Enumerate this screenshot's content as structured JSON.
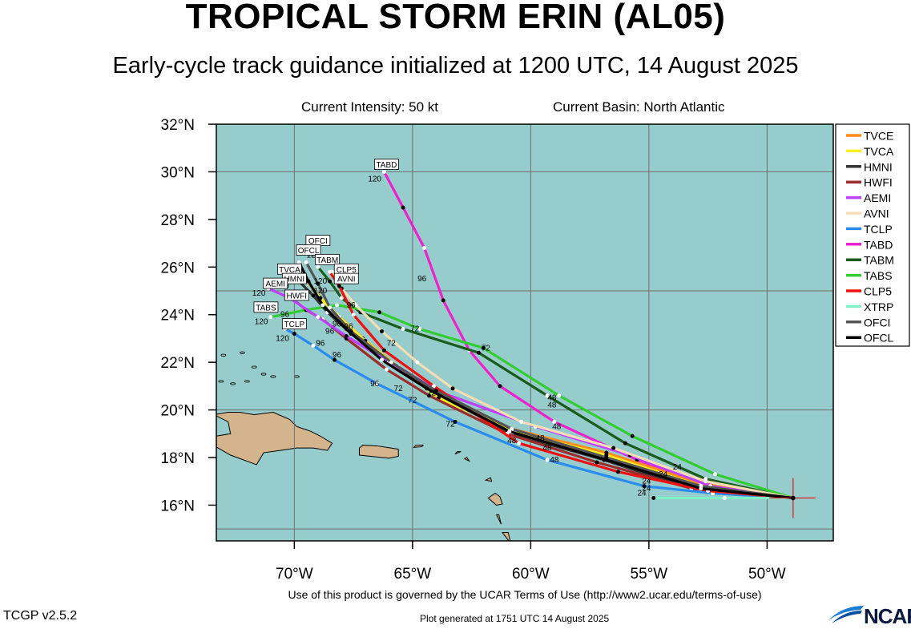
{
  "header": {
    "title": "TROPICAL STORM ERIN (AL05)",
    "subtitle": "Early-cycle track guidance initialized at 1200 UTC, 14 August 2025",
    "current_intensity": "Current Intensity: 50 kt",
    "current_basin": "Current Basin: North Atlantic"
  },
  "footer": {
    "terms": "Use of this product is governed by the UCAR Terms of Use (http://www2.ucar.edu/terms-of-use)",
    "version": "TCGP v2.5.2",
    "generated": "Plot generated at 1751 UTC   14 August 2025",
    "logo_text": "NCAR"
  },
  "map": {
    "lon_range": [
      -73.3,
      -47.2
    ],
    "lat_range": [
      14.5,
      32.0
    ],
    "lon_ticks": [
      {
        "v": -70,
        "label": "70°W"
      },
      {
        "v": -65,
        "label": "65°W"
      },
      {
        "v": -60,
        "label": "60°W"
      },
      {
        "v": -55,
        "label": "55°W"
      },
      {
        "v": -50,
        "label": "50°W"
      }
    ],
    "lat_ticks": [
      {
        "v": 32,
        "label": "32°N"
      },
      {
        "v": 30,
        "label": "30°N"
      },
      {
        "v": 28,
        "label": "28°N"
      },
      {
        "v": 26,
        "label": "26°N"
      },
      {
        "v": 24,
        "label": "24°N"
      },
      {
        "v": 22,
        "label": "22°N"
      },
      {
        "v": 20,
        "label": "20°N"
      },
      {
        "v": 18,
        "label": "18°N"
      },
      {
        "v": 16,
        "label": "16°N"
      }
    ],
    "grid_lons": [
      -70,
      -65,
      -60,
      -55,
      -50
    ],
    "grid_lats": [
      30,
      25,
      20,
      15
    ],
    "ocean_color": "#96cccb",
    "land_color": "#d4b48c",
    "grid_color": "#6e6e6e",
    "initial_position": {
      "lon": -48.9,
      "lat": 16.3
    }
  },
  "legend": [
    {
      "name": "TVCE",
      "color": "#ff8c1a"
    },
    {
      "name": "TVCA",
      "color": "#ffee22"
    },
    {
      "name": "HMNI",
      "color": "#333333"
    },
    {
      "name": "HWFI",
      "color": "#9b2d2d"
    },
    {
      "name": "AEMI",
      "color": "#c040ff"
    },
    {
      "name": "AVNI",
      "color": "#f5ddb5"
    },
    {
      "name": "TCLP",
      "color": "#2b8cf0"
    },
    {
      "name": "TABD",
      "color": "#ee22cc"
    },
    {
      "name": "TABM",
      "color": "#1a5a1a"
    },
    {
      "name": "TABS",
      "color": "#33cc33"
    },
    {
      "name": "CLP5",
      "color": "#ee1111"
    },
    {
      "name": "XTRP",
      "color": "#80f0c8"
    },
    {
      "name": "OFCI",
      "color": "#555555"
    },
    {
      "name": "OFCL",
      "color": "#000000"
    }
  ],
  "tracks": [
    {
      "name": "TABD",
      "label": "TABD",
      "end_hour": "120",
      "points": [
        [
          -48.9,
          16.3
        ],
        [
          -51.9,
          16.7
        ],
        [
          -55.5,
          17.9
        ],
        [
          -59.0,
          19.5
        ],
        [
          -61.3,
          21.0
        ],
        [
          -62.6,
          22.5
        ],
        [
          -63.7,
          24.6
        ],
        [
          -64.5,
          26.8
        ],
        [
          -65.4,
          28.5
        ],
        [
          -66.2,
          30.0
        ]
      ]
    },
    {
      "name": "TABM",
      "label": "TABM",
      "end_hour": "120",
      "points": [
        [
          -48.9,
          16.3
        ],
        [
          -52.6,
          17.1
        ],
        [
          -56.0,
          18.6
        ],
        [
          -59.3,
          20.6
        ],
        [
          -62.2,
          22.4
        ],
        [
          -65.4,
          23.4
        ],
        [
          -67.2,
          24.1
        ],
        [
          -68.0,
          24.7
        ],
        [
          -68.5,
          25.4
        ],
        [
          -69.0,
          26.0
        ]
      ]
    },
    {
      "name": "TABS",
      "label": "TABS",
      "end_hour": "120",
      "points": [
        [
          -48.9,
          16.3
        ],
        [
          -52.2,
          17.3
        ],
        [
          -55.7,
          18.9
        ],
        [
          -58.8,
          20.6
        ],
        [
          -62.0,
          22.6
        ],
        [
          -64.7,
          23.4
        ],
        [
          -66.4,
          24.1
        ],
        [
          -68.2,
          24.4
        ],
        [
          -69.5,
          24.2
        ],
        [
          -71.0,
          23.9
        ]
      ]
    },
    {
      "name": "TVCE",
      "label": "TVCE",
      "end_hour": "120",
      "points": [
        [
          -48.9,
          16.3
        ],
        [
          -52.8,
          16.9
        ],
        [
          -56.8,
          18.2
        ],
        [
          -60.8,
          19.2
        ],
        [
          -63.9,
          20.6
        ],
        [
          -65.6,
          21.8
        ],
        [
          -67.1,
          23.0
        ],
        [
          -68.2,
          24.0
        ],
        [
          -69.0,
          24.8
        ],
        [
          -69.6,
          25.6
        ]
      ]
    },
    {
      "name": "TVCA",
      "label": "TVCA",
      "end_hour": "120",
      "points": [
        [
          -48.9,
          16.3
        ],
        [
          -52.8,
          16.8
        ],
        [
          -56.8,
          18.1
        ],
        [
          -60.7,
          19.1
        ],
        [
          -63.9,
          20.5
        ],
        [
          -65.5,
          21.7
        ],
        [
          -67.0,
          22.9
        ],
        [
          -68.1,
          23.9
        ],
        [
          -68.9,
          24.7
        ],
        [
          -69.5,
          25.5
        ]
      ]
    },
    {
      "name": "HMNI",
      "label": "HMNI",
      "end_hour": "120",
      "points": [
        [
          -48.9,
          16.3
        ],
        [
          -52.9,
          16.6
        ],
        [
          -56.9,
          17.9
        ],
        [
          -60.8,
          19.0
        ],
        [
          -64.2,
          20.8
        ],
        [
          -66.0,
          22.0
        ],
        [
          -67.6,
          23.2
        ],
        [
          -68.6,
          24.1
        ],
        [
          -69.2,
          24.8
        ],
        [
          -69.8,
          25.4
        ]
      ]
    },
    {
      "name": "HWFI",
      "label": "HWFI",
      "end_hour": "120",
      "points": [
        [
          -48.9,
          16.3
        ],
        [
          -53.2,
          16.7
        ],
        [
          -57.2,
          17.8
        ],
        [
          -61.0,
          19.0
        ],
        [
          -64.3,
          20.6
        ],
        [
          -66.1,
          21.7
        ],
        [
          -67.8,
          23.0
        ],
        [
          -68.8,
          23.8
        ],
        [
          -69.5,
          24.2
        ],
        [
          -70.0,
          24.6
        ]
      ]
    },
    {
      "name": "AEMI",
      "label": "AEMI",
      "end_hour": "120",
      "points": [
        [
          -48.9,
          16.3
        ],
        [
          -52.4,
          16.8
        ],
        [
          -55.8,
          18.1
        ],
        [
          -59.8,
          19.3
        ],
        [
          -63.7,
          20.7
        ],
        [
          -66.0,
          22.0
        ],
        [
          -67.8,
          23.1
        ],
        [
          -69.0,
          23.9
        ],
        [
          -70.2,
          24.7
        ],
        [
          -71.1,
          25.1
        ]
      ]
    },
    {
      "name": "AVNI",
      "label": "AVNI",
      "end_hour": "120",
      "points": [
        [
          -48.9,
          16.3
        ],
        [
          -52.6,
          17.0
        ],
        [
          -56.5,
          18.4
        ],
        [
          -60.4,
          19.5
        ],
        [
          -63.3,
          20.9
        ],
        [
          -64.8,
          22.0
        ],
        [
          -66.3,
          23.3
        ],
        [
          -67.4,
          24.4
        ],
        [
          -68.0,
          25.1
        ],
        [
          -68.4,
          25.8
        ]
      ]
    },
    {
      "name": "TCLP",
      "label": "TCLP",
      "end_hour": "120",
      "points": [
        [
          -48.9,
          16.3
        ],
        [
          -52.3,
          16.5
        ],
        [
          -55.2,
          16.8
        ],
        [
          -59.3,
          17.9
        ],
        [
          -63.2,
          19.5
        ],
        [
          -66.5,
          21.1
        ],
        [
          -68.3,
          22.1
        ],
        [
          -69.2,
          22.7
        ],
        [
          -70.0,
          23.2
        ],
        [
          -70.4,
          23.4
        ]
      ]
    },
    {
      "name": "CLP5",
      "label": "CLP5",
      "end_hour": "120",
      "points": [
        [
          -48.9,
          16.3
        ],
        [
          -52.5,
          16.6
        ],
        [
          -56.3,
          17.4
        ],
        [
          -60.5,
          18.6
        ],
        [
          -62.6,
          20.0
        ],
        [
          -64.1,
          21.0
        ],
        [
          -66.2,
          22.5
        ],
        [
          -67.5,
          24.0
        ],
        [
          -68.1,
          25.2
        ],
        [
          -68.5,
          25.8
        ]
      ]
    },
    {
      "name": "XTRP",
      "label": "XTRP",
      "end_hour": "24",
      "points": [
        [
          -48.9,
          16.3
        ],
        [
          -51.8,
          16.3
        ],
        [
          -54.8,
          16.3
        ]
      ]
    },
    {
      "name": "OFCI",
      "label": "OFCI",
      "end_hour": "120",
      "points": [
        [
          -48.9,
          16.3
        ],
        [
          -52.8,
          16.8
        ],
        [
          -56.8,
          18.0
        ],
        [
          -60.8,
          19.2
        ],
        [
          -64.0,
          20.8
        ],
        [
          -65.9,
          22.0
        ],
        [
          -67.6,
          23.3
        ],
        [
          -68.5,
          24.3
        ],
        [
          -69.0,
          25.3
        ],
        [
          -69.5,
          26.2
        ]
      ]
    },
    {
      "name": "OFCL",
      "label": "OFCL",
      "end_hour": "120",
      "points": [
        [
          -48.9,
          16.3
        ],
        [
          -52.8,
          16.7
        ],
        [
          -56.8,
          17.9
        ],
        [
          -60.9,
          19.1
        ],
        [
          -64.4,
          20.9
        ],
        [
          -66.3,
          22.1
        ],
        [
          -67.8,
          23.4
        ],
        [
          -68.8,
          24.4
        ],
        [
          -69.4,
          25.4
        ],
        [
          -69.8,
          26.2
        ]
      ]
    }
  ],
  "hour_labels": [
    {
      "text": "24",
      "lon": -55.3,
      "lat": 16.4
    },
    {
      "text": "24",
      "lon": -55.1,
      "lat": 16.6
    },
    {
      "text": "24",
      "lon": -55.1,
      "lat": 16.9
    },
    {
      "text": "24",
      "lon": -54.4,
      "lat": 17.2
    },
    {
      "text": "24",
      "lon": -53.8,
      "lat": 17.5
    },
    {
      "text": "48",
      "lon": -59.3,
      "lat": 18.3
    },
    {
      "text": "48",
      "lon": -59.0,
      "lat": 17.8
    },
    {
      "text": "48",
      "lon": -60.8,
      "lat": 18.6
    },
    {
      "text": "48",
      "lon": -59.6,
      "lat": 18.7
    },
    {
      "text": "48",
      "lon": -58.9,
      "lat": 19.2
    },
    {
      "text": "48",
      "lon": -59.1,
      "lat": 20.1
    },
    {
      "text": "48",
      "lon": -59.1,
      "lat": 20.4
    },
    {
      "text": "72",
      "lon": -63.4,
      "lat": 19.3
    },
    {
      "text": "72",
      "lon": -65.0,
      "lat": 20.3
    },
    {
      "text": "72",
      "lon": -65.6,
      "lat": 20.8
    },
    {
      "text": "72",
      "lon": -64.2,
      "lat": 20.6
    },
    {
      "text": "72",
      "lon": -65.9,
      "lat": 22.7
    },
    {
      "text": "72",
      "lon": -64.9,
      "lat": 23.3
    },
    {
      "text": "72",
      "lon": -61.9,
      "lat": 22.5
    },
    {
      "text": "96",
      "lon": -66.6,
      "lat": 21.0
    },
    {
      "text": "96",
      "lon": -68.2,
      "lat": 22.2
    },
    {
      "text": "96",
      "lon": -68.9,
      "lat": 22.7
    },
    {
      "text": "96",
      "lon": -68.5,
      "lat": 23.2
    },
    {
      "text": "96",
      "lon": -67.7,
      "lat": 23.4
    },
    {
      "text": "96",
      "lon": -68.2,
      "lat": 23.5
    },
    {
      "text": "96",
      "lon": -67.6,
      "lat": 24.3
    },
    {
      "text": "96",
      "lon": -70.4,
      "lat": 23.9
    },
    {
      "text": "96",
      "lon": -64.6,
      "lat": 25.4
    },
    {
      "text": "120",
      "lon": -66.6,
      "lat": 29.6
    },
    {
      "text": "120",
      "lon": -70.5,
      "lat": 22.9
    },
    {
      "text": "120",
      "lon": -71.4,
      "lat": 23.6
    },
    {
      "text": "120",
      "lon": -71.0,
      "lat": 24.1
    },
    {
      "text": "120",
      "lon": -71.5,
      "lat": 24.8
    },
    {
      "text": "120",
      "lon": -70.5,
      "lat": 25.1
    },
    {
      "text": "120",
      "lon": -69.9,
      "lat": 25.8
    },
    {
      "text": "120",
      "lon": -69.2,
      "lat": 26.4
    },
    {
      "text": "120",
      "lon": -68.9,
      "lat": 24.9
    },
    {
      "text": "120",
      "lon": -68.9,
      "lat": 25.3
    }
  ],
  "track_tags": [
    {
      "text": "TABD",
      "lon": -66.1,
      "lat": 30.3
    },
    {
      "text": "OFCI",
      "lon": -69.0,
      "lat": 27.1
    },
    {
      "text": "OFCL",
      "lon": -69.4,
      "lat": 26.7
    },
    {
      "text": "TABM",
      "lon": -68.6,
      "lat": 26.3
    },
    {
      "text": "CLP5",
      "lon": -67.8,
      "lat": 25.9
    },
    {
      "text": "TVCA",
      "lon": -70.2,
      "lat": 25.9
    },
    {
      "text": "AVNI",
      "lon": -67.8,
      "lat": 25.5
    },
    {
      "text": "HMNI",
      "lon": -70.0,
      "lat": 25.5
    },
    {
      "text": "AEMI",
      "lon": -70.8,
      "lat": 25.3
    },
    {
      "text": "HWFI",
      "lon": -69.9,
      "lat": 24.8
    },
    {
      "text": "TABS",
      "lon": -71.2,
      "lat": 24.3
    },
    {
      "text": "TCLP",
      "lon": -70.0,
      "lat": 23.6
    }
  ]
}
